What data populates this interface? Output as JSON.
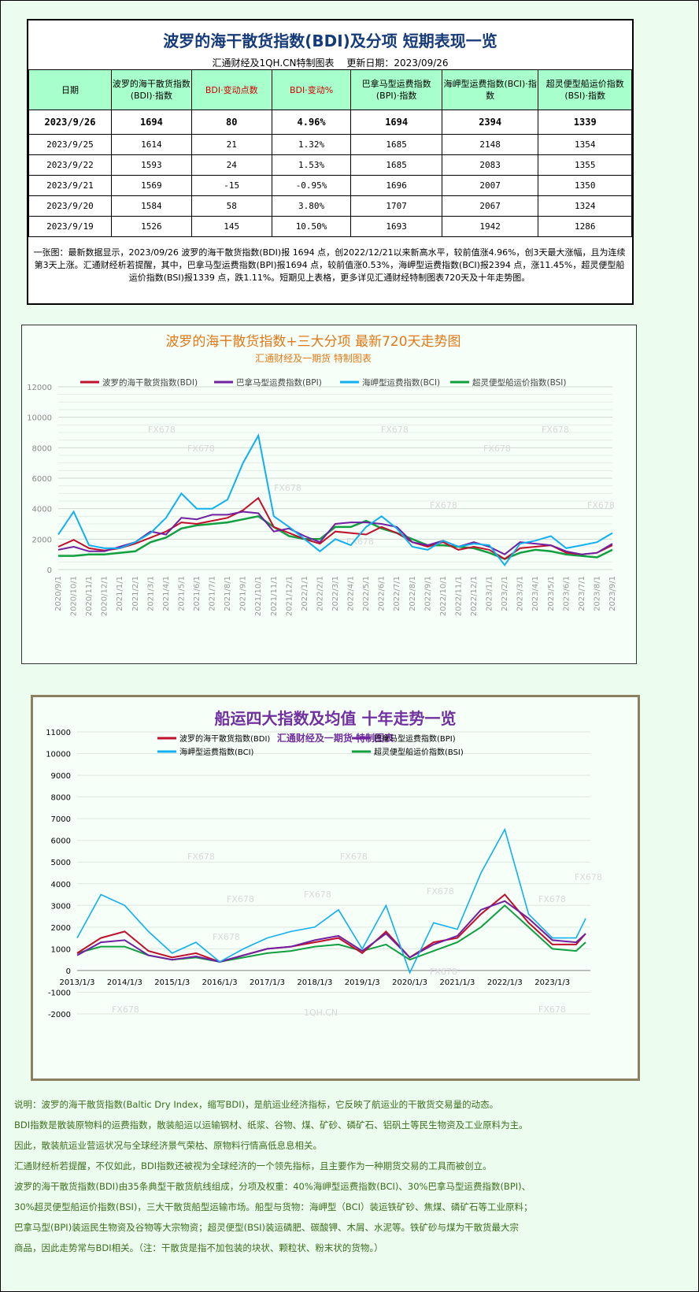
{
  "table": {
    "title": "波罗的海干散货指数(BDI)及分项 短期表现一览",
    "source": "汇通财经及1QH.CN特制图表",
    "update": "更新日期：2023/09/26",
    "headers": [
      "日期",
      "波罗的海干散货指数(BDI)·指数",
      "BDI·变动点数",
      "BDI·变动%",
      "巴拿马型运费指数(BPI)·指数",
      "海岬型运费指数(BCI)·指数",
      "超灵便型船运价指数(BSI)·指数"
    ],
    "rows": [
      [
        "2023/9/26",
        "1694",
        "80",
        "4.96%",
        "1694",
        "2394",
        "1339"
      ],
      [
        "2023/9/25",
        "1614",
        "21",
        "1.32%",
        "1685",
        "2148",
        "1354"
      ],
      [
        "2023/9/22",
        "1593",
        "24",
        "1.53%",
        "1685",
        "2083",
        "1355"
      ],
      [
        "2023/9/21",
        "1569",
        "-15",
        "-0.95%",
        "1696",
        "2007",
        "1350"
      ],
      [
        "2023/9/20",
        "1584",
        "58",
        "3.80%",
        "1707",
        "2067",
        "1324"
      ],
      [
        "2023/9/19",
        "1526",
        "145",
        "10.50%",
        "1693",
        "1942",
        "1286"
      ]
    ],
    "summary": "一张图：最新数据显示，2023/09/26 波罗的海干散货指数(BDI)报 1694 点，创2022/12/21以来新高水平，较前值涨4.96%，创3天最大涨幅，且为连续第3天上涨。汇通财经析若提醒，其中，巴拿马型运费指数(BPI)报1694 点，较前值涨0.53%，海岬型运费指数(BCI)报2394 点，涨11.45%，超灵便型船运价指数(BSI)报1339 点，跌1.11%。短期见上表格，更多详见汇通财经特制图表720天及十年走势图。"
  },
  "colors": {
    "bdi": "#c0102a",
    "bpi": "#7020a0",
    "bci": "#10b0f0",
    "bsi": "#10a040",
    "title1": "#e07818",
    "title2": "#7030a0"
  },
  "chart_data": [
    {
      "type": "line",
      "title": "波罗的海干散货指数+三大分项 最新720天走势图",
      "subtitle": "汇通财经及一期货 特制图表",
      "ylim": [
        0,
        12000
      ],
      "yticks": [
        "0",
        "2000",
        "4000",
        "6000",
        "8000",
        "10000",
        "12000"
      ],
      "x": [
        "2020/9/1",
        "2020/10/1",
        "2020/11/1",
        "2020/12/1",
        "2021/1/1",
        "2021/2/1",
        "2021/3/1",
        "2021/4/1",
        "2021/5/1",
        "2021/6/1",
        "2021/7/1",
        "2021/8/1",
        "2021/9/1",
        "2021/10/1",
        "2021/11/1",
        "2021/12/1",
        "2022/1/1",
        "2022/2/1",
        "2022/3/1",
        "2022/4/1",
        "2022/5/1",
        "2022/6/1",
        "2022/7/1",
        "2022/8/1",
        "2022/9/1",
        "2022/10/1",
        "2022/11/1",
        "2022/12/1",
        "2023/1/1",
        "2023/2/1",
        "2023/3/1",
        "2023/4/1",
        "2023/5/1",
        "2023/6/1",
        "2023/7/1",
        "2023/8/1",
        "2023/9/1"
      ],
      "grid": true,
      "legend": "top",
      "series": [
        {
          "name": "波罗的海干散货指数(BDI)",
          "values": [
            1500,
            1950,
            1400,
            1250,
            1400,
            1700,
            2100,
            2500,
            3100,
            3000,
            3200,
            3400,
            3900,
            4700,
            2800,
            2400,
            2000,
            1700,
            2500,
            2400,
            2300,
            2800,
            2400,
            1800,
            1500,
            1800,
            1300,
            1500,
            1300,
            700,
            1400,
            1500,
            1600,
            1100,
            1000,
            1100,
            1600
          ]
        },
        {
          "name": "巴拿马型运费指数(BPI)",
          "values": [
            1300,
            1500,
            1200,
            1200,
            1500,
            1800,
            2500,
            2300,
            3400,
            3300,
            3600,
            3600,
            3800,
            3700,
            2500,
            2700,
            2200,
            1800,
            3000,
            3100,
            3100,
            3000,
            2800,
            1800,
            1600,
            1900,
            1500,
            1800,
            1500,
            1000,
            1800,
            1700,
            1600,
            1200,
            1000,
            1100,
            1700
          ]
        },
        {
          "name": "海岬型运费指数(BCI)",
          "values": [
            2300,
            3800,
            1600,
            1400,
            1400,
            1800,
            2400,
            3400,
            5000,
            4000,
            4000,
            4600,
            7000,
            8800,
            3500,
            2800,
            2000,
            1200,
            2000,
            1600,
            2800,
            3500,
            2700,
            1500,
            1300,
            1900,
            1500,
            1700,
            1600,
            300,
            1700,
            1900,
            2200,
            1400,
            1600,
            1800,
            2400
          ]
        },
        {
          "name": "超灵便型船运价指数(BSI)",
          "values": [
            900,
            900,
            1000,
            1000,
            1100,
            1200,
            1800,
            2100,
            2700,
            2900,
            3000,
            3100,
            3300,
            3500,
            2800,
            2200,
            2000,
            2000,
            2800,
            2800,
            3200,
            2700,
            2400,
            2000,
            1600,
            1600,
            1500,
            1400,
            1100,
            700,
            1100,
            1300,
            1200,
            1000,
            900,
            800,
            1300
          ]
        }
      ],
      "watermark": "FX678"
    },
    {
      "type": "line",
      "title": "船运四大指数及均值 十年走势一览",
      "subtitle": "汇通财经及一期货 特制图表",
      "ylim": [
        -2000,
        11000
      ],
      "yticks": [
        "-2000",
        "-1000",
        "0",
        "1000",
        "2000",
        "3000",
        "4000",
        "5000",
        "6000",
        "7000",
        "8000",
        "9000",
        "10000",
        "11000"
      ],
      "xticks": [
        "2013/1/3",
        "2014/1/3",
        "2015/1/3",
        "2016/1/3",
        "2017/1/3",
        "2018/1/3",
        "2019/1/3",
        "2020/1/3",
        "2021/1/3",
        "2022/1/3",
        "2023/1/3"
      ],
      "x": [
        2013,
        2013.5,
        2014,
        2014.5,
        2015,
        2015.5,
        2016,
        2016.5,
        2017,
        2017.5,
        2018,
        2018.5,
        2019,
        2019.5,
        2020,
        2020.5,
        2021,
        2021.5,
        2022,
        2022.5,
        2023,
        2023.5,
        2023.7
      ],
      "grid": true,
      "legend": "top",
      "series": [
        {
          "name": "波罗的海干散货指数(BDI)",
          "values": [
            800,
            1500,
            1800,
            900,
            600,
            800,
            400,
            700,
            1000,
            1100,
            1300,
            1500,
            800,
            1800,
            600,
            1300,
            1500,
            2600,
            3500,
            2200,
            1200,
            1200,
            1700
          ]
        },
        {
          "name": "巴拿马型运费指数(BPI)",
          "values": [
            700,
            1300,
            1400,
            700,
            500,
            650,
            400,
            700,
            1000,
            1100,
            1400,
            1600,
            900,
            1700,
            600,
            1200,
            1600,
            2800,
            3200,
            2400,
            1400,
            1300,
            1700
          ]
        },
        {
          "name": "海岬型运费指数(BCI)",
          "values": [
            1500,
            3500,
            3000,
            1800,
            800,
            1300,
            400,
            1000,
            1500,
            1800,
            2000,
            2800,
            1000,
            3000,
            -100,
            2200,
            1900,
            4500,
            6500,
            2600,
            1500,
            1500,
            2400
          ]
        },
        {
          "name": "超灵便型船运价指数(BSI)",
          "values": [
            800,
            1100,
            1100,
            700,
            500,
            600,
            400,
            600,
            800,
            900,
            1100,
            1200,
            900,
            1200,
            500,
            900,
            1300,
            2000,
            3000,
            2000,
            1000,
            900,
            1300
          ]
        }
      ],
      "watermarks": [
        "FX678",
        "1QH.CN"
      ]
    }
  ],
  "notes": [
    "说明：波罗的海干散货指数(Baltic Dry Index，缩写BDI)，是航运业经济指标，它反映了航运业的干散货交易量的动态。",
    "BDI指数是散装原物料的运费指数，散装船运以运输钢材、纸浆、谷物、煤、矿砂、磷矿石、铝矾土等民生物资及工业原料为主。",
    "因此，散装航运业营运状况与全球经济景气荣枯、原物料行情高低息息相关。",
    "汇通财经析若提醒，不仅如此，BDI指数还被视为全球经济的一个领先指标，且主要作为一种期货交易的工具而被创立。",
    "波罗的海干散货指数(BDI)由35条典型干散货航线组成，分项及权重：40%海岬型运费指数(BCI)、30%巴拿马型运费指数(BPI)、",
    "30%超灵便型船运价指数(BSI)，三大干散货船型运输市场。船型与货物：海岬型（BCI）装运铁矿砂、焦煤、磷矿石等工业原料；",
    "巴拿马型(BPI)装运民生物资及谷物等大宗物资；超灵便型(BSI)装运磷肥、碳酸钾、木屑、水泥等。铁矿砂与煤为干散货最大宗",
    "商品，因此走势常与BDI相关。（注：干散货是指不加包装的块状、颗粒状、粉末状的货物。）"
  ]
}
